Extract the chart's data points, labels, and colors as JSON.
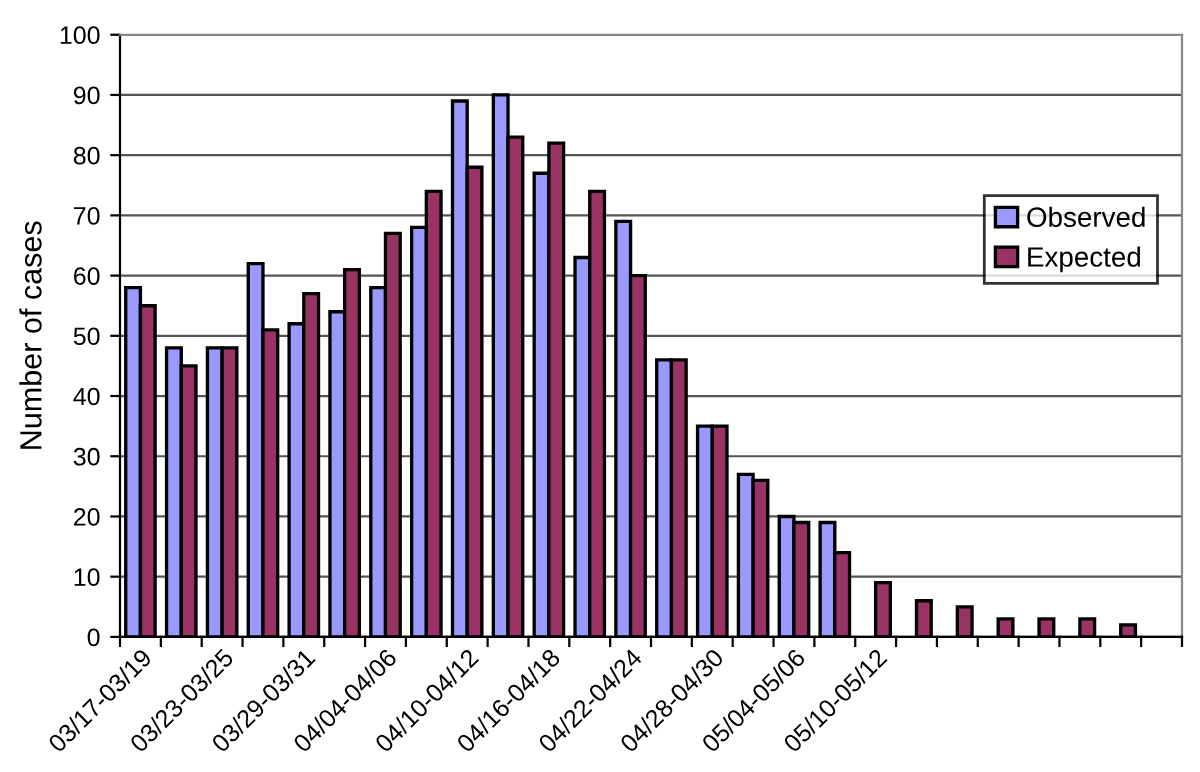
{
  "chart_data": {
    "type": "bar",
    "ylabel": "Number of cases",
    "categories": [
      "03/17-03/19",
      null,
      "03/23-03/25",
      null,
      "03/29-03/31",
      null,
      "04/04-04/06",
      null,
      "04/10-04/12",
      null,
      "04/16-04/18",
      null,
      "04/22-04/24",
      null,
      "04/28-04/30",
      null,
      "05/04-05/06",
      null,
      "05/10-05/12",
      null,
      null,
      null,
      null,
      null,
      null,
      null
    ],
    "series": [
      {
        "name": "Observed",
        "color": "#9999ff",
        "values": [
          58,
          48,
          48,
          62,
          52,
          54,
          58,
          68,
          89,
          90,
          77,
          63,
          69,
          46,
          35,
          27,
          20,
          19,
          null,
          null,
          null,
          null,
          null,
          null,
          null,
          null
        ]
      },
      {
        "name": "Expected",
        "color": "#993366",
        "values": [
          55,
          45,
          48,
          51,
          57,
          61,
          67,
          74,
          78,
          83,
          82,
          74,
          60,
          46,
          35,
          26,
          19,
          14,
          9,
          6,
          5,
          3,
          3,
          3,
          2,
          null
        ]
      }
    ],
    "ylim": [
      0,
      100
    ],
    "yticks": [
      0,
      10,
      20,
      30,
      40,
      50,
      60,
      70,
      80,
      90,
      100
    ],
    "grid": "y",
    "legend": "right"
  }
}
